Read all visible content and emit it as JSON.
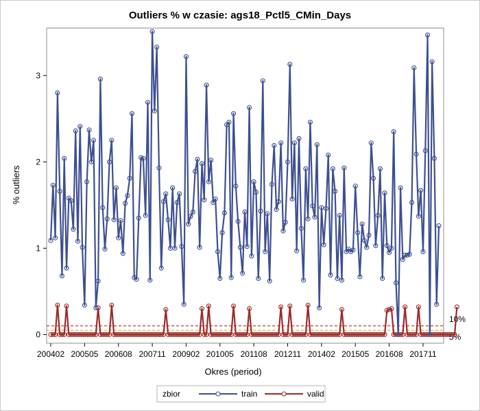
{
  "chart_data": {
    "type": "line",
    "title": "Outliers % w czasie: ags18_Pctl5_CMin_Days",
    "xlabel": "Okres (period)",
    "ylabel": "% outliers",
    "x_tick_labels": [
      "200402",
      "200505",
      "200608",
      "200711",
      "200902",
      "201005",
      "201108",
      "201211",
      "201402",
      "201505",
      "201608",
      "201711"
    ],
    "ylim": [
      -0.1,
      3.55
    ],
    "y_ticks": [
      0,
      1,
      2,
      3
    ],
    "reference_lines": [
      {
        "value": 0.1,
        "label": "10%",
        "color": "#cc0000"
      },
      {
        "value": 0.05,
        "label": "5%",
        "color": "#e6a800"
      }
    ],
    "legend": {
      "title": "zbior",
      "position": "bottom"
    },
    "series": [
      {
        "name": "train",
        "color": "#3d4f91",
        "values": [
          1.09,
          1.73,
          1.12,
          2.8,
          1.66,
          0.68,
          2.04,
          0.77,
          1.58,
          1.55,
          1.22,
          2.36,
          1.08,
          2.41,
          1.01,
          0.34,
          1.77,
          2.37,
          2.0,
          2.25,
          0.31,
          0.62,
          2.96,
          1.47,
          0.99,
          1.34,
          2.0,
          2.25,
          1.33,
          1.7,
          1.12,
          1.32,
          0.94,
          1.52,
          1.61,
          1.81,
          2.56,
          0.66,
          0.64,
          1.35,
          2.05,
          2.04,
          1.38,
          2.69,
          0.63,
          3.51,
          2.59,
          3.33,
          1.93,
          0.77,
          1.54,
          1.63,
          1.33,
          1.0,
          1.7,
          1.0,
          1.53,
          1.63,
          1.02,
          0.35,
          3.22,
          1.28,
          1.37,
          1.42,
          1.89,
          2.03,
          1.01,
          1.98,
          1.56,
          2.89,
          1.77,
          2.02,
          1.53,
          1.57,
          0.96,
          0.65,
          1.18,
          1.41,
          2.43,
          2.46,
          0.66,
          2.56,
          1.72,
          1.31,
          1.01,
          0.71,
          1.42,
          1.02,
          2.63,
          0.91,
          1.77,
          1.65,
          0.65,
          1.43,
          2.94,
          0.96,
          1.4,
          0.62,
          1.74,
          2.19,
          1.45,
          1.54,
          2.22,
          1.2,
          1.3,
          2.0,
          3.13,
          1.57,
          2.22,
          0.97,
          2.27,
          1.23,
          0.63,
          1.92,
          1.34,
          2.46,
          1.49,
          1.36,
          2.2,
          0.31,
          1.47,
          1.04,
          1.46,
          2.08,
          0.69,
          1.92,
          1.66,
          0.65,
          1.38,
          0.63,
          1.93,
          0.96,
          0.99,
          0.96,
          0.98,
          1.72,
          1.18,
          0.67,
          1.28,
          1.09,
          1.01,
          1.15,
          2.22,
          1.81,
          1.03,
          1.38,
          1.92,
          0.65,
          1.64,
          1.03,
          0.95,
          1.0,
          2.35,
          0.6,
          0.0,
          1.7,
          0.87,
          0.92,
          0.92,
          0.93,
          1.53,
          3.09,
          2.09,
          1.37,
          1.67,
          0.96,
          2.13,
          3.47,
          0.0,
          3.16,
          2.04,
          0.35,
          1.26
        ]
      },
      {
        "name": "valid",
        "color": "#9c2a2a",
        "values": [
          0,
          0,
          0,
          0.34,
          0,
          0,
          0,
          0.33,
          0,
          0,
          0,
          0,
          0,
          0,
          0,
          0,
          0,
          0,
          0,
          0,
          0,
          0.31,
          0,
          0,
          0,
          0,
          0,
          0.34,
          0,
          0,
          0,
          0,
          0,
          0,
          0,
          0,
          0,
          0,
          0,
          0,
          0,
          0,
          0,
          0,
          0,
          0,
          0,
          0,
          0,
          0,
          0,
          0.29,
          0,
          0,
          0,
          0,
          0,
          0,
          0,
          0,
          0,
          0,
          0,
          0,
          0,
          0,
          0,
          0.3,
          0,
          0,
          0.33,
          0,
          0,
          0,
          0,
          0,
          0,
          0,
          0,
          0,
          0,
          0.33,
          0,
          0,
          0,
          0,
          0,
          0,
          0.3,
          0,
          0,
          0,
          0,
          0,
          0,
          0,
          0,
          0,
          0,
          0,
          0,
          0,
          0.32,
          0,
          0,
          0,
          0.33,
          0,
          0,
          0,
          0,
          0,
          0,
          0,
          0.34,
          0,
          0,
          0,
          0,
          0,
          0,
          0,
          0,
          0,
          0,
          0,
          0,
          0,
          0,
          0.29,
          0,
          0,
          0,
          0,
          0,
          0,
          0,
          0,
          0,
          0,
          0,
          0,
          0,
          0,
          0,
          0,
          0,
          0,
          0,
          0.28,
          0.29,
          0.3,
          0,
          0,
          0,
          0,
          0,
          0.32,
          0,
          0,
          0,
          0,
          0,
          0.32,
          0,
          0,
          0,
          0,
          0,
          0,
          0,
          0,
          0,
          0,
          0,
          0,
          0,
          0,
          0,
          0,
          0.32
        ]
      }
    ]
  }
}
